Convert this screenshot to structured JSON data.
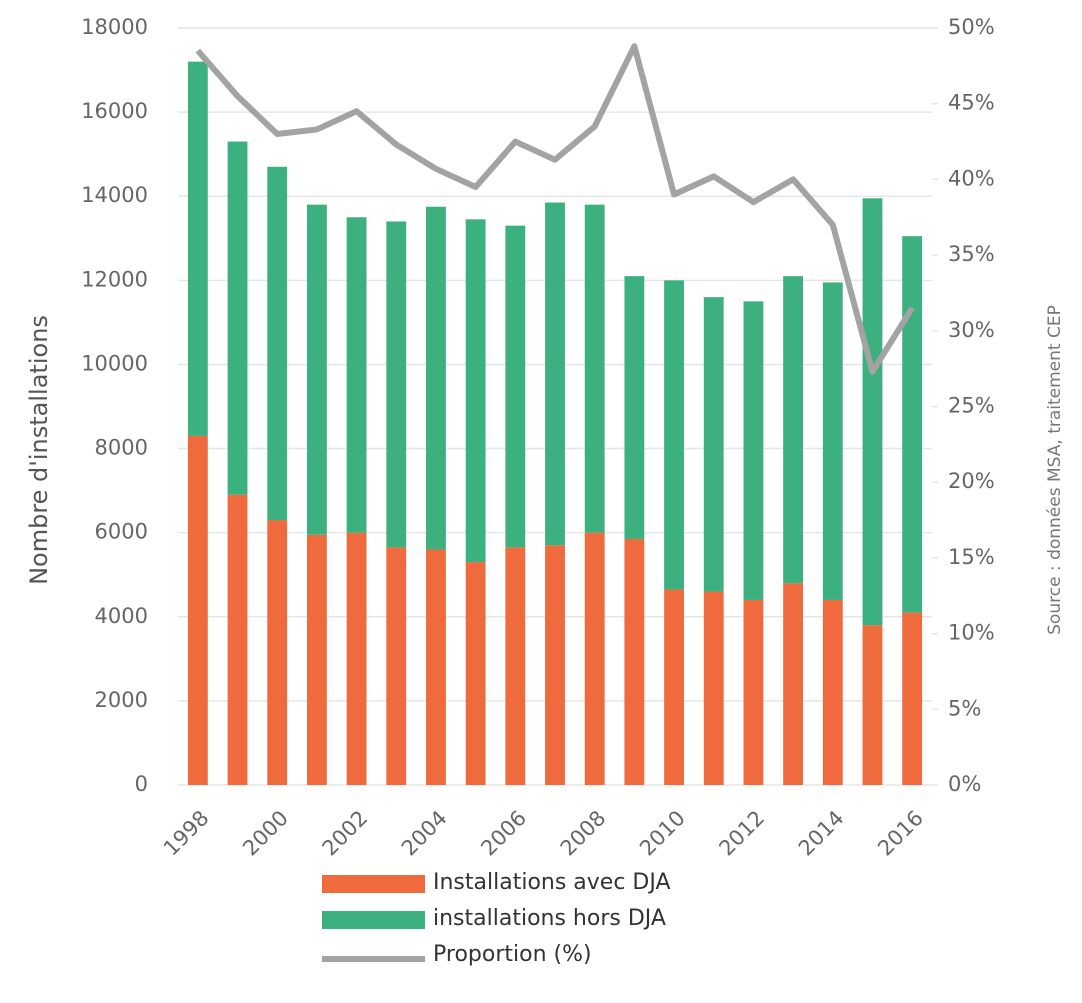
{
  "chart_data": {
    "type": "stacked-bar-line",
    "ylabel": "Nombre d'installations",
    "source": "Source : données MSA, traitement CEP",
    "categories": [
      "1998",
      null,
      "2000",
      null,
      "2002",
      null,
      "2004",
      null,
      "2006",
      null,
      "2008",
      null,
      "2010",
      null,
      "2012",
      null,
      "2014",
      null,
      "2016"
    ],
    "series": [
      {
        "name": "Installations avec DJA",
        "color": "#ef6a3c",
        "values": [
          8300,
          6900,
          6300,
          5950,
          6000,
          5650,
          5600,
          5300,
          5650,
          5700,
          6000,
          5850,
          4650,
          4600,
          4400,
          4800,
          4400,
          3800,
          4100
        ]
      },
      {
        "name": "installations hors DJA",
        "color": "#3db07f",
        "values": [
          8900,
          8400,
          8400,
          7850,
          7500,
          7750,
          8150,
          8150,
          7650,
          8150,
          7800,
          6250,
          7350,
          7000,
          7100,
          7300,
          7550,
          10150,
          8950
        ]
      },
      {
        "name": "Proportion (%)",
        "color": "#a3a3a3",
        "axis": "y2",
        "values": [
          48.5,
          45.5,
          43,
          43.3,
          44.5,
          42.3,
          40.7,
          39.5,
          42.5,
          41.3,
          43.5,
          48.8,
          39,
          40.2,
          38.5,
          40,
          37,
          27.3,
          31.5
        ]
      }
    ],
    "ylim": [
      0,
      18000
    ],
    "yticks": [
      0,
      2000,
      4000,
      6000,
      8000,
      10000,
      12000,
      14000,
      16000,
      18000
    ],
    "y2lim": [
      0,
      50
    ],
    "y2ticks": [
      {
        "value": 0,
        "label": "0%"
      },
      {
        "value": 5,
        "label": "5%"
      },
      {
        "value": 10,
        "label": "10%"
      },
      {
        "value": 15,
        "label": "15%"
      },
      {
        "value": 20,
        "label": "20%"
      },
      {
        "value": 25,
        "label": "25%"
      },
      {
        "value": 30,
        "label": "30%"
      },
      {
        "value": 35,
        "label": "35%"
      },
      {
        "value": 40,
        "label": "40%"
      },
      {
        "value": 45,
        "label": "45%"
      },
      {
        "value": 50,
        "label": "50%"
      }
    ],
    "grid": true,
    "legend": "bottom"
  }
}
